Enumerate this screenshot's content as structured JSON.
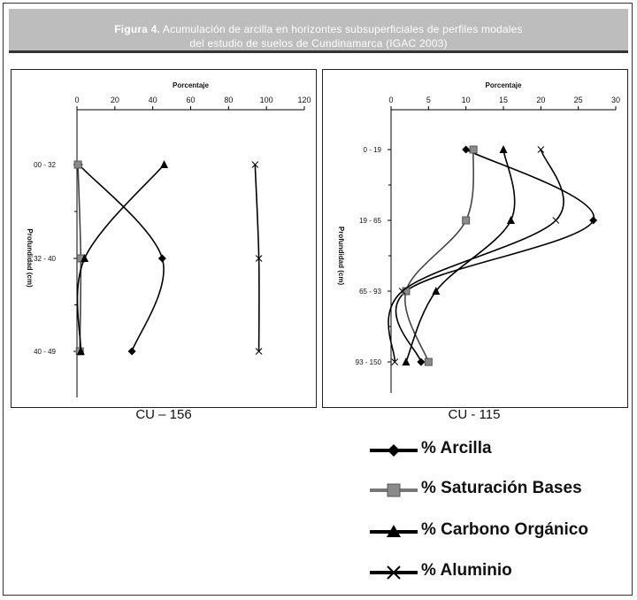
{
  "figure": {
    "title_bold": "Figura 4.",
    "title_rest": " Acumulación de arcilla en horizontes subsuperficiales de perfiles modales",
    "title_line2": "del estudio de suelos de Cundinamarca (IGAC 2003)"
  },
  "legend": {
    "items": [
      {
        "label": "% Arcilla",
        "marker": "diamond",
        "icon": "diamond-marker-icon"
      },
      {
        "label": "% Saturación Bases",
        "marker": "square",
        "icon": "square-marker-icon"
      },
      {
        "label": "% Carbono Orgánico",
        "marker": "triangle",
        "icon": "triangle-marker-icon"
      },
      {
        "label": "% Aluminio",
        "marker": "x",
        "icon": "x-marker-icon"
      }
    ]
  },
  "chart_data": [
    {
      "type": "line",
      "caption": "CU – 156",
      "xlabel": "Porcentaje",
      "ylabel": "Profundidad (cm)",
      "xlim": [
        0,
        120
      ],
      "x_ticks": [
        0,
        20,
        40,
        60,
        80,
        100,
        120
      ],
      "x_axis_position": "top",
      "y_categories": [
        "00 - 32",
        "32 - 40",
        "40 - 49"
      ],
      "smooth": true,
      "series": [
        {
          "name": "% Arcilla",
          "marker": "diamond",
          "values": [
            1,
            45,
            29
          ]
        },
        {
          "name": "% Saturación Bases",
          "marker": "square",
          "values": [
            0.5,
            2,
            1.5
          ]
        },
        {
          "name": "% Carbono Orgánico",
          "marker": "triangle",
          "values": [
            46,
            4,
            2
          ]
        },
        {
          "name": "% Aluminio",
          "marker": "x",
          "values": [
            94,
            96,
            96
          ]
        }
      ]
    },
    {
      "type": "line",
      "caption": "CU - 115",
      "xlabel": "Porcentaje",
      "ylabel": "Profundidad (cm)",
      "xlim": [
        0,
        30
      ],
      "x_ticks": [
        0,
        5,
        10,
        15,
        20,
        25,
        30
      ],
      "x_axis_position": "top",
      "y_categories": [
        "0 - 19",
        "19 - 65",
        "65 - 93",
        "93 - 150"
      ],
      "smooth": true,
      "series": [
        {
          "name": "% Arcilla",
          "marker": "diamond",
          "values": [
            10,
            27,
            2,
            4
          ]
        },
        {
          "name": "% Saturación Bases",
          "marker": "square",
          "values": [
            11,
            10,
            2,
            5
          ]
        },
        {
          "name": "% Carbono Orgánico",
          "marker": "triangle",
          "values": [
            15,
            16,
            6,
            2
          ]
        },
        {
          "name": "% Aluminio",
          "marker": "x",
          "values": [
            20,
            22,
            1.5,
            0.5
          ]
        }
      ]
    }
  ]
}
